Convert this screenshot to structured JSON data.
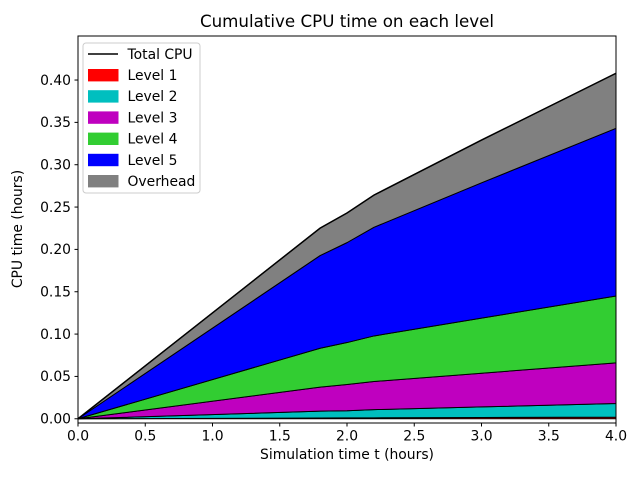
{
  "chart_data": {
    "type": "area",
    "stacked": true,
    "title": "Cumulative CPU time on each level",
    "xlabel": "Simulation time t (hours)",
    "ylabel": "CPU time (hours)",
    "x": [
      0,
      1.8,
      2.0,
      2.2,
      3.0,
      4.0
    ],
    "series": [
      {
        "name": "Level 1",
        "color": "#ff0000",
        "values": [
          0,
          0.0009,
          0.001,
          0.0011,
          0.0015,
          0.002
        ]
      },
      {
        "name": "Level 2",
        "color": "#00bfbf",
        "values": [
          0,
          0.0081,
          0.0085,
          0.0097,
          0.0125,
          0.016
        ]
      },
      {
        "name": "Level 3",
        "color": "#bf00bf",
        "values": [
          0,
          0.0284,
          0.031,
          0.0332,
          0.0398,
          0.048
        ]
      },
      {
        "name": "Level 4",
        "color": "#32cd32",
        "values": [
          0,
          0.0459,
          0.0495,
          0.0538,
          0.065,
          0.079
        ]
      },
      {
        "name": "Level 5",
        "color": "#0000ff",
        "values": [
          0,
          0.1094,
          0.118,
          0.1283,
          0.1598,
          0.198
        ]
      },
      {
        "name": "Overhead",
        "color": "#808080",
        "values": [
          0,
          0.0324,
          0.035,
          0.038,
          0.0505,
          0.065
        ]
      }
    ],
    "total_line": {
      "name": "Total CPU",
      "color": "#000000"
    },
    "totals": [
      0,
      0.2251,
      0.243,
      0.2641,
      0.3291,
      0.408
    ],
    "legend": {
      "position": "upper-left",
      "entries": [
        "Total CPU",
        "Level 1",
        "Level 2",
        "Level 3",
        "Level 4",
        "Level 5",
        "Overhead"
      ]
    },
    "xlim": [
      0,
      4
    ],
    "ylim": [
      -0.005,
      0.452
    ],
    "xticks": [
      0.0,
      0.5,
      1.0,
      1.5,
      2.0,
      2.5,
      3.0,
      3.5,
      4.0
    ],
    "xtick_labels": [
      "0.0",
      "0.5",
      "1.0",
      "1.5",
      "2.0",
      "2.5",
      "3.0",
      "3.5",
      "4.0"
    ],
    "yticks": [
      0.0,
      0.05,
      0.1,
      0.15,
      0.2,
      0.25,
      0.3,
      0.35,
      0.4
    ],
    "ytick_labels": [
      "0.00",
      "0.05",
      "0.10",
      "0.15",
      "0.20",
      "0.25",
      "0.30",
      "0.35",
      "0.40"
    ],
    "grid": false,
    "edge_color": "#000000",
    "background_color": "#ffffff",
    "legend_border_color": "#cccccc"
  }
}
